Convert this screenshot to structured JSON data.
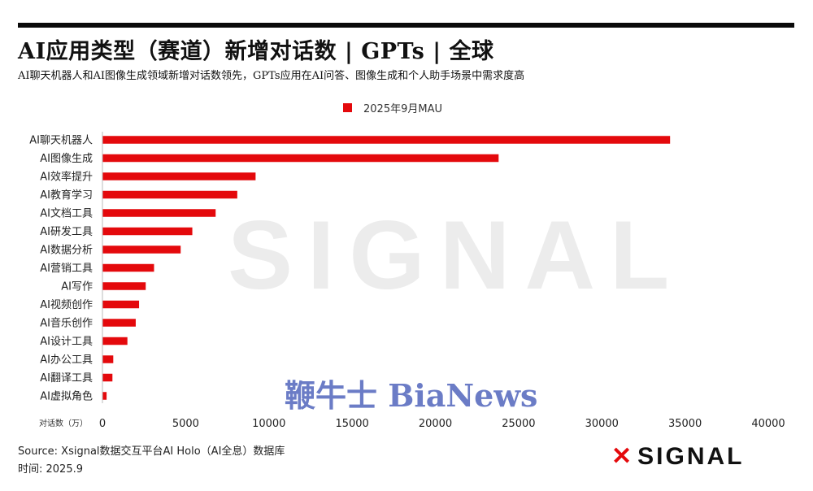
{
  "title": "AI应用类型（赛道）新增对话数 | GPTs | 全球",
  "subtitle": "AI聊天机器人和AI图像生成领域新增对话数领先，GPTs应用在AI问答、图像生成和个人助手场景中需求度高",
  "watermark": "SIGNAL",
  "watermark_brand": "鞭牛士 BiaNews",
  "source": "Source:   Xsignal数据交互平台AI Holo（AI全息）数据库",
  "date": "时间:   2025.9",
  "logo": {
    "mark": "✕",
    "text": "SIGNAL"
  },
  "colors": {
    "bar": "#e4090c",
    "axis": "#333333"
  },
  "chart_data": {
    "type": "bar",
    "orientation": "horizontal",
    "categories": [
      "AI聊天机器人",
      "AI图像生成",
      "AI效率提升",
      "AI教育学习",
      "AI文档工具",
      "AI研发工具",
      "AI数据分析",
      "AI营销工具",
      "AI写作",
      "AI视频创作",
      "AI音乐创作",
      "AI设计工具",
      "AI办公工具",
      "AI翻译工具",
      "AI虚拟角色"
    ],
    "series": [
      {
        "name": "2025年9月MAU",
        "values": [
          34100,
          23800,
          9200,
          8100,
          6800,
          5400,
          4700,
          3100,
          2600,
          2200,
          2000,
          1500,
          650,
          600,
          250
        ]
      }
    ],
    "xlabel": "对话数（万）",
    "xlim": [
      0,
      40000
    ],
    "xticks": [
      0,
      5000,
      10000,
      15000,
      20000,
      25000,
      30000,
      35000,
      40000
    ],
    "legend": "top-center",
    "grid": false
  }
}
